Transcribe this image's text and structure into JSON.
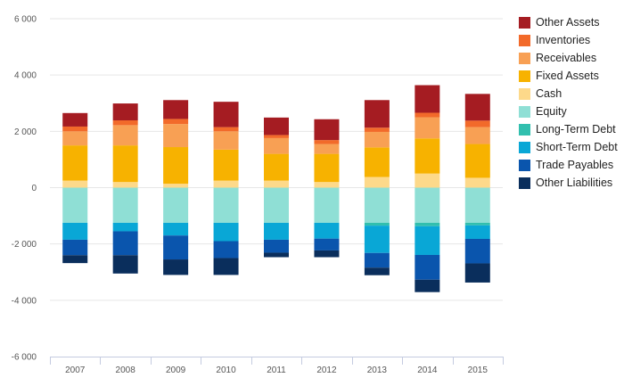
{
  "chart_data": {
    "type": "bar",
    "stacked": true,
    "categories": [
      "2007",
      "2008",
      "2009",
      "2010",
      "2011",
      "2012",
      "2013",
      "2014",
      "2015"
    ],
    "ylim": [
      -6000,
      6000
    ],
    "yticks": [
      6000,
      4000,
      2000,
      0,
      -2000,
      -4000,
      -6000
    ],
    "ytick_labels": [
      "6 000",
      "4 000",
      "2 000",
      "0",
      "-2 000",
      "-4 000",
      "-6 000"
    ],
    "grid": true,
    "legend_position": "right",
    "series": [
      {
        "name": "Other Assets",
        "side": "positive",
        "color": "#a51c22",
        "values": [
          480,
          600,
          670,
          900,
          620,
          740,
          980,
          980,
          950
        ]
      },
      {
        "name": "Inventories",
        "side": "positive",
        "color": "#f26a2a",
        "values": [
          170,
          170,
          180,
          150,
          110,
          140,
          150,
          160,
          230
        ]
      },
      {
        "name": "Receivables",
        "side": "positive",
        "color": "#f8a054",
        "values": [
          500,
          720,
          820,
          650,
          560,
          350,
          550,
          750,
          600
        ]
      },
      {
        "name": "Fixed Assets",
        "side": "positive",
        "color": "#f7b200",
        "values": [
          1250,
          1300,
          1300,
          1100,
          950,
          1000,
          1050,
          1250,
          1200
        ]
      },
      {
        "name": "Cash",
        "side": "positive",
        "color": "#fdd98a",
        "values": [
          250,
          200,
          140,
          250,
          250,
          200,
          380,
          500,
          350
        ]
      },
      {
        "name": "Equity",
        "side": "negative",
        "color": "#8fdfd5",
        "values": [
          -1250,
          -1250,
          -1250,
          -1250,
          -1250,
          -1250,
          -1250,
          -1250,
          -1250
        ]
      },
      {
        "name": "Long-Term Debt",
        "side": "negative",
        "color": "#31bfae",
        "values": [
          0,
          0,
          0,
          0,
          0,
          0,
          -100,
          -120,
          -90
        ]
      },
      {
        "name": "Short-Term Debt",
        "side": "negative",
        "color": "#09a7d6",
        "values": [
          -600,
          -300,
          -450,
          -650,
          -600,
          -560,
          -970,
          -1020,
          -480
        ]
      },
      {
        "name": "Trade Payables",
        "side": "negative",
        "color": "#0a55ad",
        "values": [
          -550,
          -850,
          -850,
          -600,
          -460,
          -420,
          -520,
          -880,
          -870
        ]
      },
      {
        "name": "Other Liabilities",
        "side": "negative",
        "color": "#0a2e5c",
        "values": [
          -280,
          -650,
          -550,
          -600,
          -160,
          -240,
          -270,
          -440,
          -680
        ]
      }
    ]
  }
}
